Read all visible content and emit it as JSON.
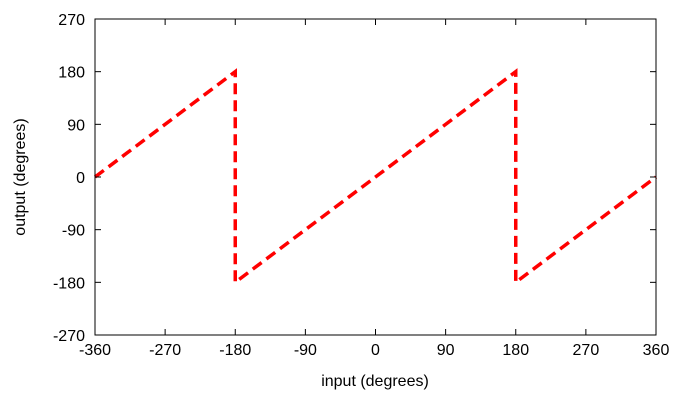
{
  "chart_data": {
    "type": "line",
    "title": "",
    "xlabel": "input (degrees)",
    "ylabel": "output (degrees)",
    "xlim": [
      -360,
      360
    ],
    "ylim": [
      -270,
      270
    ],
    "xticks": [
      -360,
      -270,
      -180,
      -90,
      0,
      90,
      180,
      270,
      360
    ],
    "yticks": [
      -270,
      -180,
      -90,
      0,
      90,
      180,
      270
    ],
    "xtick_labels": [
      "-360",
      "-270",
      "-180",
      "-90",
      "0",
      "90",
      "180",
      "270",
      "360"
    ],
    "ytick_labels": [
      "-270",
      "-180",
      "-90",
      "0",
      "90",
      "180",
      "270"
    ],
    "grid": false,
    "series": [
      {
        "color": "#ff0000",
        "line_style": "dashed",
        "x": [
          -360,
          -180,
          -180,
          180,
          180,
          360
        ],
        "y": [
          0,
          180,
          -180,
          180,
          -180,
          0
        ]
      }
    ]
  }
}
